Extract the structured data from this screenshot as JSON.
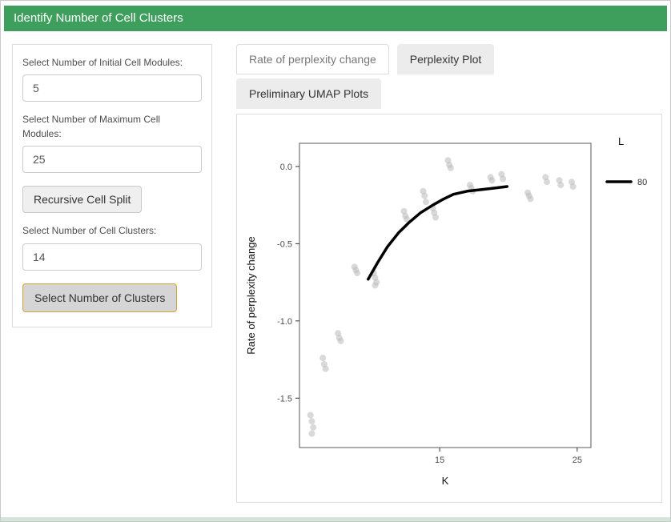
{
  "header": {
    "title": "Identify Number of Cell Clusters",
    "bg_color": "#3e9e5c"
  },
  "sidebar": {
    "initial_modules": {
      "label": "Select Number of Initial Cell Modules:",
      "value": "5"
    },
    "max_modules": {
      "label": "Select Number of Maximum Cell Modules:",
      "value": "25"
    },
    "recursive_split_button": "Recursive Cell Split",
    "cell_clusters": {
      "label": "Select Number of Cell Clusters:",
      "value": "14"
    },
    "select_clusters_button": "Select Number of Clusters",
    "select_clusters_border_color": "#d9a238"
  },
  "tabs": [
    {
      "label": "Rate of perplexity change",
      "active": true
    },
    {
      "label": "Perplexity Plot",
      "active": false
    },
    {
      "label": "Preliminary UMAP Plots",
      "active": false
    }
  ],
  "chart_data": {
    "type": "scatter",
    "title": "",
    "xlabel": "K",
    "ylabel": "Rate of perplexity change",
    "xlim": [
      4.8,
      26
    ],
    "ylim": [
      -1.82,
      0.15
    ],
    "xticks": [
      15,
      25
    ],
    "yticks": [
      0.0,
      -0.5,
      -1.0,
      -1.5
    ],
    "grid": false,
    "point_color": "#b9b9b9",
    "legend": {
      "title": "L",
      "position": "right",
      "entries": [
        {
          "label": "80",
          "color": "#000000",
          "type": "line"
        }
      ]
    },
    "points": [
      [
        5.6,
        -1.61
      ],
      [
        5.7,
        -1.65
      ],
      [
        5.8,
        -1.69
      ],
      [
        5.7,
        -1.73
      ],
      [
        6.5,
        -1.24
      ],
      [
        6.6,
        -1.28
      ],
      [
        6.7,
        -1.31
      ],
      [
        7.6,
        -1.08
      ],
      [
        7.7,
        -1.11
      ],
      [
        7.8,
        -1.13
      ],
      [
        8.8,
        -0.65
      ],
      [
        8.9,
        -0.67
      ],
      [
        9.0,
        -0.69
      ],
      [
        10.2,
        -0.69
      ],
      [
        10.3,
        -0.72
      ],
      [
        10.4,
        -0.75
      ],
      [
        10.3,
        -0.77
      ],
      [
        12.4,
        -0.29
      ],
      [
        12.5,
        -0.32
      ],
      [
        12.6,
        -0.34
      ],
      [
        13.8,
        -0.16
      ],
      [
        13.9,
        -0.19
      ],
      [
        14.0,
        -0.23
      ],
      [
        14.5,
        -0.27
      ],
      [
        14.6,
        -0.3
      ],
      [
        14.7,
        -0.33
      ],
      [
        15.6,
        0.04
      ],
      [
        15.7,
        0.01
      ],
      [
        15.8,
        -0.01
      ],
      [
        17.2,
        -0.12
      ],
      [
        17.3,
        -0.14
      ],
      [
        17.4,
        -0.16
      ],
      [
        18.7,
        -0.07
      ],
      [
        18.8,
        -0.09
      ],
      [
        19.5,
        -0.05
      ],
      [
        19.6,
        -0.08
      ],
      [
        21.4,
        -0.17
      ],
      [
        21.5,
        -0.19
      ],
      [
        21.6,
        -0.21
      ],
      [
        22.7,
        -0.07
      ],
      [
        22.8,
        -0.1
      ],
      [
        23.7,
        -0.09
      ],
      [
        23.8,
        -0.12
      ],
      [
        24.6,
        -0.1
      ],
      [
        24.7,
        -0.13
      ]
    ],
    "smooth_line": [
      [
        9.8,
        -0.73
      ],
      [
        10.5,
        -0.62
      ],
      [
        11.2,
        -0.52
      ],
      [
        12.0,
        -0.43
      ],
      [
        12.8,
        -0.36
      ],
      [
        13.6,
        -0.3
      ],
      [
        14.5,
        -0.25
      ],
      [
        15.3,
        -0.21
      ],
      [
        16.0,
        -0.18
      ],
      [
        17.0,
        -0.16
      ],
      [
        18.0,
        -0.15
      ],
      [
        19.0,
        -0.14
      ],
      [
        19.9,
        -0.13
      ]
    ]
  }
}
